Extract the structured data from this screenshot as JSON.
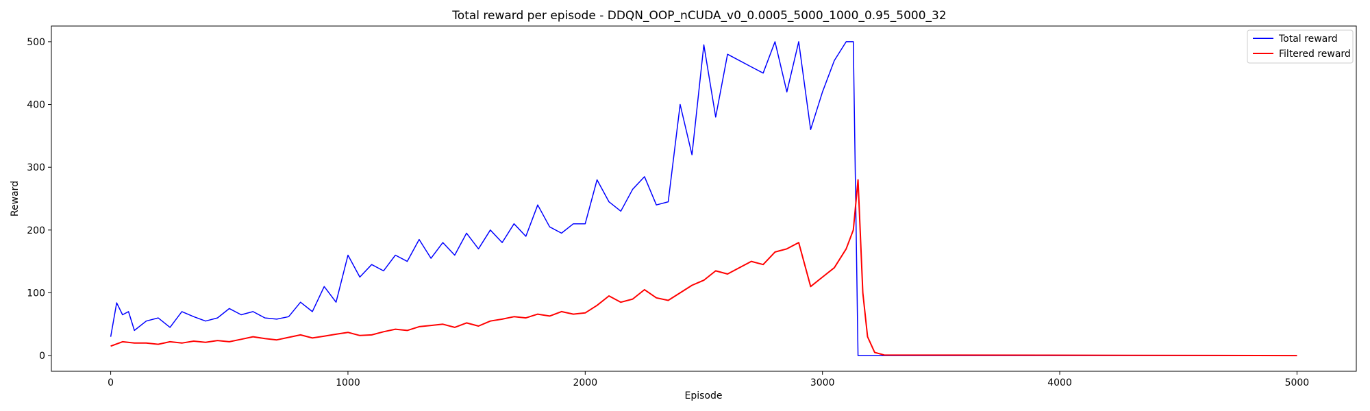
{
  "chart_data": {
    "type": "line",
    "title": "Total reward per episode - DDQN_OOP_nCUDA_v0_0.0005_5000_1000_0.95_5000_32",
    "xlabel": "Episode",
    "ylabel": "Reward",
    "xlim": [
      -250,
      5250
    ],
    "ylim": [
      -25,
      525
    ],
    "xticks": [
      0,
      1000,
      2000,
      3000,
      4000,
      5000
    ],
    "yticks": [
      0,
      100,
      200,
      300,
      400,
      500
    ],
    "grid": false,
    "legend_position": "top-right",
    "series": [
      {
        "name": "Total reward",
        "color": "#0000ff",
        "x": [
          0,
          25,
          50,
          75,
          100,
          150,
          200,
          250,
          300,
          350,
          400,
          450,
          500,
          550,
          600,
          650,
          700,
          750,
          800,
          850,
          900,
          950,
          1000,
          1050,
          1100,
          1150,
          1200,
          1250,
          1300,
          1350,
          1400,
          1450,
          1500,
          1550,
          1600,
          1650,
          1700,
          1750,
          1800,
          1850,
          1900,
          1950,
          2000,
          2050,
          2100,
          2150,
          2200,
          2250,
          2300,
          2350,
          2400,
          2450,
          2500,
          2550,
          2600,
          2650,
          2700,
          2750,
          2800,
          2850,
          2900,
          2950,
          3000,
          3050,
          3100,
          3130,
          3150,
          3160,
          3200,
          5000
        ],
        "y": [
          30,
          84,
          65,
          70,
          40,
          55,
          60,
          45,
          70,
          62,
          55,
          60,
          75,
          65,
          70,
          60,
          58,
          62,
          85,
          70,
          110,
          85,
          160,
          125,
          145,
          135,
          160,
          150,
          185,
          155,
          180,
          160,
          195,
          170,
          200,
          180,
          210,
          190,
          240,
          205,
          195,
          210,
          210,
          280,
          245,
          230,
          265,
          285,
          240,
          245,
          400,
          320,
          495,
          380,
          480,
          470,
          460,
          450,
          500,
          420,
          500,
          360,
          420,
          470,
          500,
          500,
          0,
          0,
          0,
          0
        ]
      },
      {
        "name": "Filtered reward",
        "color": "#ff0000",
        "x": [
          0,
          50,
          100,
          150,
          200,
          250,
          300,
          350,
          400,
          450,
          500,
          550,
          600,
          650,
          700,
          750,
          800,
          850,
          900,
          950,
          1000,
          1050,
          1100,
          1150,
          1200,
          1250,
          1300,
          1350,
          1400,
          1450,
          1500,
          1550,
          1600,
          1650,
          1700,
          1750,
          1800,
          1850,
          1900,
          1950,
          2000,
          2050,
          2100,
          2150,
          2200,
          2250,
          2300,
          2350,
          2400,
          2450,
          2500,
          2550,
          2600,
          2650,
          2700,
          2750,
          2800,
          2850,
          2900,
          2950,
          3000,
          3050,
          3100,
          3130,
          3150,
          3170,
          3190,
          3220,
          3260,
          5000
        ],
        "y": [
          15,
          22,
          20,
          20,
          18,
          22,
          20,
          23,
          21,
          24,
          22,
          26,
          30,
          27,
          25,
          29,
          33,
          28,
          31,
          34,
          37,
          32,
          33,
          38,
          42,
          40,
          46,
          48,
          50,
          45,
          52,
          47,
          55,
          58,
          62,
          60,
          66,
          63,
          70,
          66,
          68,
          80,
          95,
          85,
          90,
          105,
          92,
          88,
          100,
          112,
          120,
          135,
          130,
          140,
          150,
          145,
          165,
          170,
          180,
          110,
          125,
          140,
          170,
          200,
          280,
          100,
          30,
          5,
          1,
          0
        ]
      }
    ]
  }
}
